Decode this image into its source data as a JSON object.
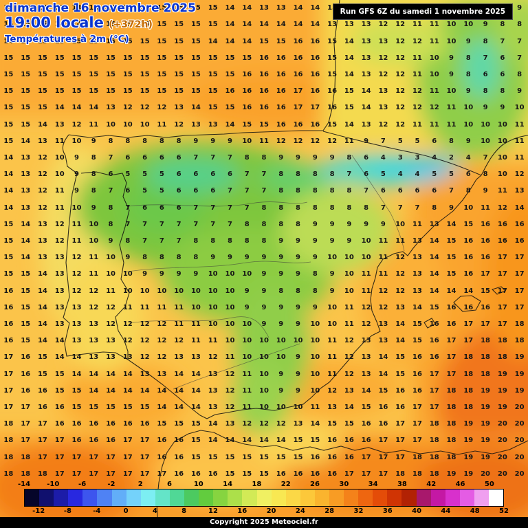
{
  "header": {
    "date": "dimanche 16 novembre 2025",
    "time": "19:00 locale",
    "offset": "(+372h)",
    "parameter": "Températures à 2m (°C)",
    "run": "Run GFS 6Z du samedi 1 novembre 2025"
  },
  "footer": {
    "copyright": "Copyright 2025 Meteociel.fr"
  },
  "palette": {
    "header_blue": "#0a35cf",
    "offset_color": "#c46a00",
    "run_bg": "#000000",
    "run_fg": "#ffffff",
    "number_color": "#161616"
  },
  "colorbar": {
    "top_labels": [
      "-14",
      "-10",
      "-6",
      "-2",
      "2",
      "6",
      "10",
      "14",
      "18",
      "22",
      "26",
      "30",
      "34",
      "38",
      "42",
      "46",
      "50"
    ],
    "bottom_labels": [
      "-12",
      "-8",
      "-4",
      "0",
      "4",
      "8",
      "12",
      "16",
      "20",
      "24",
      "28",
      "32",
      "36",
      "40",
      "44",
      "48",
      "52"
    ],
    "segment_colors": [
      "#05052a",
      "#10106e",
      "#1c1ca8",
      "#2828e0",
      "#3d55ee",
      "#4f82f4",
      "#62aef8",
      "#74d2fa",
      "#7ceef2",
      "#64e4c8",
      "#50d896",
      "#4cca60",
      "#62cc3e",
      "#86d440",
      "#ace04a",
      "#d2ea56",
      "#f0f062",
      "#f8e852",
      "#fbd846",
      "#fcc83a",
      "#fab42e",
      "#f89c24",
      "#f4821a",
      "#ee6610",
      "#e44c08",
      "#d03404",
      "#b22204",
      "#a8186c",
      "#c418a4",
      "#d830cc",
      "#e45ce4",
      "#f0a0f0",
      "#ffffff"
    ]
  },
  "chart_data": {
    "type": "heatmap",
    "title": "Températures à 2m (°C)",
    "unit": "°C",
    "scale_min": -14,
    "scale_max": 52,
    "columns": 31,
    "rows": 29,
    "values": [
      [
        14,
        14,
        14,
        13,
        13,
        14,
        14,
        14,
        14,
        15,
        15,
        15,
        15,
        14,
        14,
        13,
        13,
        14,
        14,
        13,
        13,
        13,
        13,
        12,
        12,
        11,
        11,
        10,
        10,
        9,
        9
      ],
      [
        15,
        15,
        15,
        14,
        14,
        14,
        15,
        15,
        15,
        15,
        15,
        15,
        15,
        14,
        14,
        14,
        14,
        14,
        14,
        13,
        13,
        13,
        12,
        12,
        11,
        11,
        10,
        10,
        9,
        8,
        8
      ],
      [
        14,
        15,
        15,
        15,
        15,
        15,
        15,
        15,
        15,
        15,
        15,
        15,
        14,
        14,
        14,
        15,
        15,
        16,
        16,
        15,
        14,
        13,
        13,
        12,
        12,
        11,
        10,
        9,
        8,
        7,
        7
      ],
      [
        15,
        15,
        15,
        15,
        15,
        15,
        15,
        15,
        15,
        15,
        15,
        15,
        15,
        15,
        15,
        16,
        16,
        16,
        16,
        15,
        14,
        13,
        12,
        12,
        11,
        10,
        9,
        8,
        7,
        6,
        7
      ],
      [
        15,
        15,
        15,
        15,
        15,
        15,
        15,
        15,
        15,
        15,
        15,
        15,
        15,
        15,
        16,
        16,
        16,
        16,
        16,
        15,
        14,
        13,
        12,
        12,
        11,
        10,
        9,
        8,
        6,
        6,
        8
      ],
      [
        15,
        15,
        15,
        15,
        15,
        15,
        15,
        15,
        15,
        15,
        15,
        15,
        15,
        16,
        16,
        16,
        16,
        17,
        16,
        16,
        15,
        14,
        13,
        12,
        12,
        11,
        10,
        9,
        8,
        8,
        9
      ],
      [
        15,
        15,
        15,
        14,
        14,
        14,
        13,
        12,
        12,
        12,
        13,
        14,
        15,
        15,
        16,
        16,
        16,
        17,
        17,
        16,
        15,
        14,
        13,
        12,
        12,
        12,
        11,
        10,
        9,
        9,
        10
      ],
      [
        15,
        15,
        14,
        13,
        12,
        11,
        10,
        10,
        10,
        11,
        12,
        13,
        13,
        14,
        15,
        15,
        16,
        16,
        16,
        15,
        14,
        13,
        12,
        12,
        11,
        11,
        11,
        10,
        10,
        10,
        11
      ],
      [
        15,
        14,
        13,
        11,
        10,
        9,
        8,
        8,
        8,
        8,
        8,
        9,
        9,
        9,
        10,
        11,
        12,
        12,
        12,
        12,
        11,
        9,
        7,
        5,
        5,
        6,
        8,
        9,
        10,
        10,
        11
      ],
      [
        14,
        13,
        12,
        10,
        9,
        8,
        7,
        6,
        6,
        6,
        6,
        7,
        7,
        7,
        8,
        8,
        9,
        9,
        9,
        9,
        8,
        6,
        4,
        3,
        3,
        4,
        2,
        4,
        7,
        10,
        11
      ],
      [
        14,
        13,
        12,
        10,
        9,
        8,
        6,
        5,
        5,
        5,
        6,
        6,
        6,
        6,
        7,
        7,
        8,
        8,
        8,
        8,
        7,
        6,
        5,
        4,
        4,
        5,
        5,
        6,
        8,
        10,
        12
      ],
      [
        14,
        13,
        12,
        11,
        9,
        8,
        7,
        6,
        5,
        5,
        6,
        6,
        6,
        7,
        7,
        7,
        8,
        8,
        8,
        8,
        8,
        7,
        6,
        6,
        6,
        6,
        7,
        8,
        9,
        11,
        13
      ],
      [
        14,
        13,
        12,
        11,
        10,
        9,
        8,
        7,
        6,
        6,
        6,
        7,
        7,
        7,
        7,
        8,
        8,
        8,
        8,
        8,
        8,
        8,
        7,
        7,
        7,
        8,
        9,
        10,
        11,
        12,
        14
      ],
      [
        15,
        14,
        13,
        12,
        11,
        10,
        8,
        7,
        7,
        7,
        7,
        7,
        7,
        7,
        8,
        8,
        8,
        8,
        9,
        9,
        9,
        9,
        9,
        10,
        11,
        13,
        14,
        15,
        16,
        16,
        16
      ],
      [
        15,
        14,
        13,
        12,
        11,
        10,
        9,
        8,
        7,
        7,
        7,
        8,
        8,
        8,
        8,
        8,
        9,
        9,
        9,
        9,
        9,
        10,
        11,
        11,
        13,
        14,
        15,
        16,
        16,
        16,
        16
      ],
      [
        15,
        14,
        13,
        13,
        12,
        11,
        10,
        9,
        8,
        8,
        8,
        8,
        9,
        9,
        9,
        9,
        9,
        9,
        9,
        10,
        10,
        10,
        11,
        12,
        13,
        14,
        15,
        16,
        16,
        17,
        17
      ],
      [
        15,
        15,
        14,
        13,
        12,
        11,
        10,
        10,
        9,
        9,
        9,
        9,
        10,
        10,
        10,
        9,
        9,
        9,
        8,
        9,
        10,
        11,
        11,
        12,
        13,
        14,
        15,
        16,
        17,
        17,
        17
      ],
      [
        16,
        15,
        14,
        13,
        12,
        12,
        11,
        10,
        10,
        10,
        10,
        10,
        10,
        10,
        9,
        9,
        8,
        8,
        8,
        9,
        10,
        11,
        12,
        12,
        13,
        14,
        14,
        14,
        15,
        17,
        17
      ],
      [
        16,
        15,
        14,
        13,
        13,
        12,
        12,
        11,
        11,
        11,
        11,
        10,
        10,
        10,
        9,
        9,
        9,
        9,
        9,
        10,
        11,
        12,
        12,
        13,
        14,
        15,
        16,
        16,
        16,
        17,
        17
      ],
      [
        16,
        15,
        14,
        13,
        13,
        13,
        12,
        12,
        12,
        12,
        11,
        11,
        10,
        10,
        10,
        9,
        9,
        9,
        10,
        10,
        11,
        12,
        13,
        14,
        15,
        16,
        16,
        17,
        17,
        17,
        18
      ],
      [
        16,
        15,
        14,
        14,
        13,
        13,
        13,
        12,
        12,
        12,
        12,
        11,
        11,
        10,
        10,
        10,
        10,
        10,
        10,
        11,
        12,
        13,
        13,
        14,
        15,
        16,
        17,
        17,
        18,
        18,
        18
      ],
      [
        17,
        16,
        15,
        14,
        14,
        13,
        13,
        13,
        12,
        12,
        13,
        13,
        12,
        11,
        10,
        10,
        10,
        9,
        10,
        11,
        12,
        13,
        14,
        15,
        16,
        16,
        17,
        18,
        18,
        18,
        19
      ],
      [
        17,
        16,
        15,
        15,
        14,
        14,
        14,
        14,
        13,
        13,
        14,
        14,
        13,
        12,
        11,
        10,
        9,
        9,
        10,
        11,
        12,
        13,
        14,
        15,
        16,
        17,
        17,
        18,
        18,
        19,
        19
      ],
      [
        17,
        16,
        16,
        15,
        15,
        14,
        14,
        14,
        14,
        14,
        14,
        14,
        13,
        12,
        11,
        10,
        9,
        9,
        10,
        12,
        13,
        14,
        15,
        16,
        16,
        17,
        18,
        18,
        19,
        19,
        19
      ],
      [
        17,
        17,
        16,
        16,
        15,
        15,
        15,
        15,
        15,
        14,
        14,
        14,
        13,
        12,
        11,
        10,
        10,
        10,
        11,
        13,
        14,
        15,
        16,
        16,
        17,
        17,
        18,
        18,
        19,
        19,
        20
      ],
      [
        18,
        17,
        17,
        16,
        16,
        16,
        16,
        16,
        16,
        15,
        15,
        15,
        14,
        13,
        12,
        12,
        12,
        13,
        14,
        15,
        15,
        16,
        16,
        17,
        17,
        18,
        18,
        19,
        19,
        20,
        20
      ],
      [
        18,
        17,
        17,
        17,
        16,
        16,
        16,
        17,
        17,
        16,
        16,
        15,
        14,
        14,
        14,
        14,
        14,
        15,
        15,
        16,
        16,
        16,
        17,
        17,
        17,
        18,
        18,
        19,
        19,
        20,
        20
      ],
      [
        18,
        18,
        17,
        17,
        17,
        17,
        17,
        17,
        17,
        16,
        16,
        15,
        15,
        15,
        15,
        15,
        15,
        15,
        16,
        16,
        16,
        17,
        17,
        17,
        18,
        18,
        18,
        19,
        19,
        20,
        20
      ],
      [
        18,
        18,
        18,
        17,
        17,
        17,
        17,
        17,
        17,
        17,
        16,
        16,
        16,
        15,
        15,
        15,
        16,
        16,
        16,
        16,
        17,
        17,
        17,
        18,
        18,
        18,
        19,
        19,
        20,
        20,
        20
      ]
    ]
  }
}
